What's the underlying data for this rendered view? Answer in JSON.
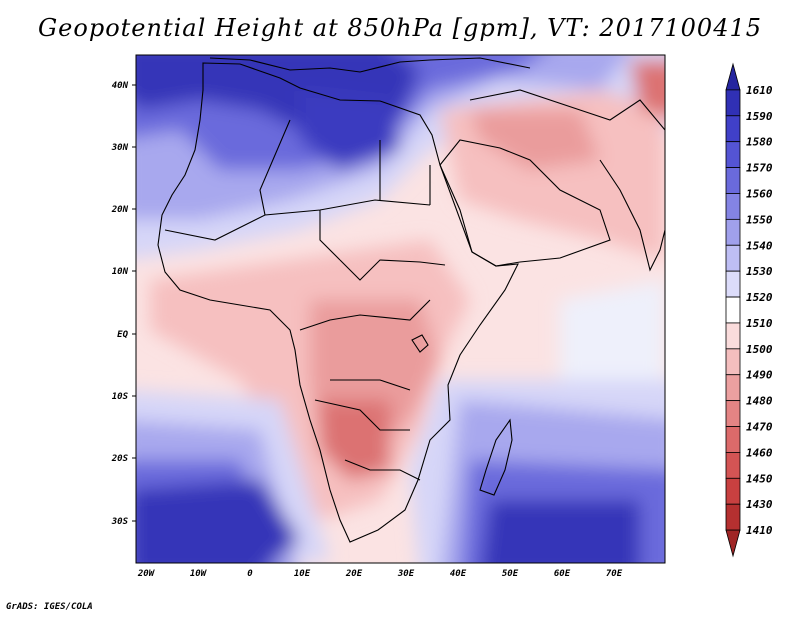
{
  "title": "Geopotential Height at 850hPa [gpm], VT: 2017100415",
  "credit": "GrADS: IGES/COLA",
  "lat_labels": [
    "40N",
    "30N",
    "20N",
    "10N",
    "EQ",
    "10S",
    "20S",
    "30S"
  ],
  "lon_labels": [
    "20W",
    "10W",
    "0",
    "10E",
    "20E",
    "30E",
    "40E",
    "50E",
    "60E",
    "70E"
  ],
  "colorbar": {
    "levels": [
      "1610",
      "1590",
      "1580",
      "1570",
      "1560",
      "1550",
      "1540",
      "1530",
      "1520",
      "1510",
      "1500",
      "1490",
      "1480",
      "1470",
      "1460",
      "1450",
      "1430",
      "1410"
    ],
    "colors": [
      "#25259f",
      "#3030b5",
      "#4040c8",
      "#5454d4",
      "#6a6adc",
      "#8484e4",
      "#a0a0ec",
      "#bebef4",
      "#dcdcfa",
      "#ffffff",
      "#fadcdc",
      "#f4bebe",
      "#eca0a0",
      "#e48484",
      "#dc6a6a",
      "#d45454",
      "#c84040",
      "#b53030",
      "#9f2525"
    ]
  },
  "regions": {
    "colors": {
      "blue_dark": "#3434b8",
      "blue_mid": "#6a6adc",
      "blue_light": "#a8a8ee",
      "blue_pale": "#d6d6f8",
      "pink_pale": "#fbe0e0",
      "pink_light": "#f6c0c0",
      "red_mid": "#ea9c9c",
      "red_strong": "#dc7272"
    }
  }
}
